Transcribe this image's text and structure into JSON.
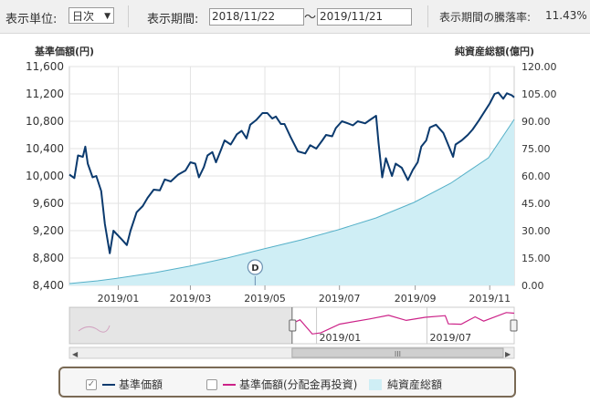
{
  "toolbar": {
    "unit_label": "表示単位:",
    "unit_value": "日次",
    "period_label": "表示期間:",
    "date_from": "2018/11/22",
    "date_separator": "～",
    "date_to": "2019/11/21",
    "change_label": "表示期間の騰落率:",
    "change_value": "11.43%"
  },
  "legend": {
    "item1": "基準価額",
    "item2": "基準価額(分配金再投資)",
    "item3": "純資産総額",
    "item1_checked": true,
    "item2_checked": false
  },
  "colors": {
    "nav_line": "#0b3a6e",
    "reinvest_line": "#cc2288",
    "aum_fill": "#cfeef5",
    "aum_line": "#55b0c8"
  },
  "chart_data": {
    "type": "line",
    "left_axis_title": "基準価額(円)",
    "right_axis_title": "純資産総額(億円)",
    "left_ticks": [
      "11,600",
      "11,200",
      "10,800",
      "10,400",
      "10,000",
      "9,600",
      "9,200",
      "8,800",
      "8,400"
    ],
    "right_ticks": [
      "120.00",
      "105.00",
      "90.00",
      "75.00",
      "60.00",
      "45.00",
      "30.00",
      "15.00",
      "0.00"
    ],
    "ylim_left": [
      8400,
      11600
    ],
    "ylim_right": [
      0,
      120
    ],
    "x_ticks": [
      "2019/01",
      "2019/03",
      "2019/05",
      "2019/07",
      "2019/09",
      "2019/11"
    ],
    "x_tick_dates": [
      "2019-01-01",
      "2019-03-01",
      "2019-05-01",
      "2019-07-01",
      "2019-09-01",
      "2019-11-01"
    ],
    "xlim": [
      "2018-11-22",
      "2019-11-21"
    ],
    "marker_label": "D",
    "marker_date": "2019-04-23",
    "series": [
      {
        "name": "基準価額",
        "axis": "left",
        "points": [
          [
            "2018-11-22",
            10020
          ],
          [
            "2018-11-26",
            9970
          ],
          [
            "2018-11-29",
            10300
          ],
          [
            "2018-12-03",
            10280
          ],
          [
            "2018-12-05",
            10430
          ],
          [
            "2018-12-07",
            10180
          ],
          [
            "2018-12-11",
            9980
          ],
          [
            "2018-12-14",
            10000
          ],
          [
            "2018-12-18",
            9780
          ],
          [
            "2018-12-21",
            9300
          ],
          [
            "2018-12-25",
            8870
          ],
          [
            "2018-12-28",
            9200
          ],
          [
            "2019-01-04",
            9070
          ],
          [
            "2019-01-08",
            8990
          ],
          [
            "2019-01-11",
            9200
          ],
          [
            "2019-01-16",
            9470
          ],
          [
            "2019-01-21",
            9560
          ],
          [
            "2019-01-25",
            9680
          ],
          [
            "2019-01-30",
            9800
          ],
          [
            "2019-02-04",
            9790
          ],
          [
            "2019-02-08",
            9950
          ],
          [
            "2019-02-13",
            9920
          ],
          [
            "2019-02-19",
            10020
          ],
          [
            "2019-02-25",
            10080
          ],
          [
            "2019-03-01",
            10200
          ],
          [
            "2019-03-05",
            10180
          ],
          [
            "2019-03-08",
            9980
          ],
          [
            "2019-03-12",
            10130
          ],
          [
            "2019-03-15",
            10300
          ],
          [
            "2019-03-19",
            10350
          ],
          [
            "2019-03-22",
            10200
          ],
          [
            "2019-03-26",
            10380
          ],
          [
            "2019-03-29",
            10520
          ],
          [
            "2019-04-03",
            10460
          ],
          [
            "2019-04-08",
            10610
          ],
          [
            "2019-04-12",
            10660
          ],
          [
            "2019-04-16",
            10550
          ],
          [
            "2019-04-19",
            10750
          ],
          [
            "2019-04-24",
            10820
          ],
          [
            "2019-04-29",
            10920
          ],
          [
            "2019-05-03",
            10920
          ],
          [
            "2019-05-07",
            10840
          ],
          [
            "2019-05-10",
            10870
          ],
          [
            "2019-05-14",
            10760
          ],
          [
            "2019-05-17",
            10760
          ],
          [
            "2019-05-22",
            10570
          ],
          [
            "2019-05-28",
            10360
          ],
          [
            "2019-06-03",
            10330
          ],
          [
            "2019-06-07",
            10450
          ],
          [
            "2019-06-12",
            10400
          ],
          [
            "2019-06-17",
            10520
          ],
          [
            "2019-06-20",
            10600
          ],
          [
            "2019-06-25",
            10580
          ],
          [
            "2019-06-28",
            10700
          ],
          [
            "2019-07-03",
            10800
          ],
          [
            "2019-07-08",
            10770
          ],
          [
            "2019-07-12",
            10740
          ],
          [
            "2019-07-16",
            10800
          ],
          [
            "2019-07-22",
            10770
          ],
          [
            "2019-07-26",
            10820
          ],
          [
            "2019-07-31",
            10880
          ],
          [
            "2019-08-02",
            10480
          ],
          [
            "2019-08-05",
            9980
          ],
          [
            "2019-08-08",
            10260
          ],
          [
            "2019-08-13",
            10000
          ],
          [
            "2019-08-16",
            10180
          ],
          [
            "2019-08-21",
            10120
          ],
          [
            "2019-08-26",
            9940
          ],
          [
            "2019-08-30",
            10090
          ],
          [
            "2019-09-03",
            10200
          ],
          [
            "2019-09-06",
            10430
          ],
          [
            "2019-09-10",
            10520
          ],
          [
            "2019-09-13",
            10710
          ],
          [
            "2019-09-18",
            10750
          ],
          [
            "2019-09-24",
            10630
          ],
          [
            "2019-09-27",
            10500
          ],
          [
            "2019-10-02",
            10280
          ],
          [
            "2019-10-04",
            10460
          ],
          [
            "2019-10-09",
            10520
          ],
          [
            "2019-10-14",
            10600
          ],
          [
            "2019-10-18",
            10680
          ],
          [
            "2019-10-23",
            10810
          ],
          [
            "2019-10-28",
            10950
          ],
          [
            "2019-11-01",
            11060
          ],
          [
            "2019-11-05",
            11200
          ],
          [
            "2019-11-08",
            11220
          ],
          [
            "2019-11-12",
            11130
          ],
          [
            "2019-11-15",
            11210
          ],
          [
            "2019-11-19",
            11180
          ],
          [
            "2019-11-21",
            11150
          ]
        ]
      },
      {
        "name": "純資産総額",
        "axis": "right",
        "points": [
          [
            "2018-11-22",
            1.0
          ],
          [
            "2018-12-15",
            2.5
          ],
          [
            "2019-01-01",
            4.0
          ],
          [
            "2019-01-31",
            7.0
          ],
          [
            "2019-02-28",
            10.5
          ],
          [
            "2019-03-31",
            15.0
          ],
          [
            "2019-04-30",
            20.0
          ],
          [
            "2019-05-31",
            25.0
          ],
          [
            "2019-06-30",
            30.5
          ],
          [
            "2019-07-31",
            37.0
          ],
          [
            "2019-08-31",
            45.5
          ],
          [
            "2019-09-30",
            56.0
          ],
          [
            "2019-10-31",
            70.0
          ],
          [
            "2019-11-21",
            91.0
          ]
        ]
      },
      {
        "name": "navigator",
        "points": [
          [
            "2018-11-22",
            10020
          ],
          [
            "2018-12-05",
            10430
          ],
          [
            "2018-12-25",
            8870
          ],
          [
            "2019-01-08",
            8990
          ],
          [
            "2019-02-08",
            9950
          ],
          [
            "2019-03-29",
            10520
          ],
          [
            "2019-04-29",
            10920
          ],
          [
            "2019-05-28",
            10360
          ],
          [
            "2019-06-28",
            10700
          ],
          [
            "2019-07-31",
            10880
          ],
          [
            "2019-08-05",
            9980
          ],
          [
            "2019-08-26",
            9940
          ],
          [
            "2019-09-18",
            10750
          ],
          [
            "2019-10-02",
            10280
          ],
          [
            "2019-11-08",
            11220
          ],
          [
            "2019-11-21",
            11150
          ]
        ]
      }
    ],
    "navigator": {
      "ticks": [
        "2019/01",
        "2019/07"
      ],
      "tick_dates": [
        "2019-01-01",
        "2019-07-01"
      ],
      "xlim": [
        "2017-11-22",
        "2019-11-21"
      ]
    }
  }
}
